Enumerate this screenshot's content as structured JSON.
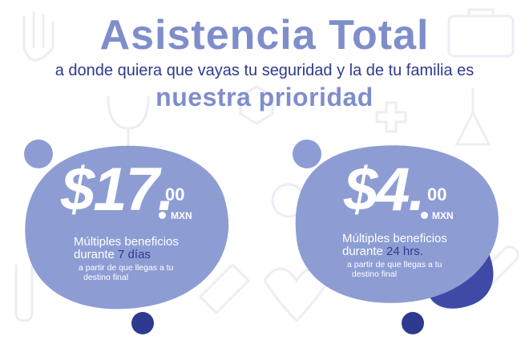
{
  "header": {
    "title": "Asistencia Total",
    "subtitle": "a donde quiera que vayas tu seguridad y la de tu familia es",
    "emphasis": "nuestra prioridad"
  },
  "plans": [
    {
      "price_main": "$17.",
      "price_cents": "00",
      "currency": "MXN",
      "benefit_prefix": "Múltiples beneficios",
      "duration_prefix": "durante",
      "duration_value": "7 días",
      "note_line1": "a partir de que llegas a tu",
      "note_line2": "destino final"
    },
    {
      "price_main": "$4.",
      "price_cents": "00",
      "currency": "MXN",
      "benefit_prefix": "Múltiples beneficios",
      "duration_prefix": "durante",
      "duration_value": "24 hrs.",
      "note_line1": "a partir de que llegas a tu",
      "note_line2": "destino final"
    }
  ],
  "colors": {
    "blob": "#8d9dd4",
    "accent_dark": "#2e3a8f",
    "title": "#7f8ecb"
  }
}
